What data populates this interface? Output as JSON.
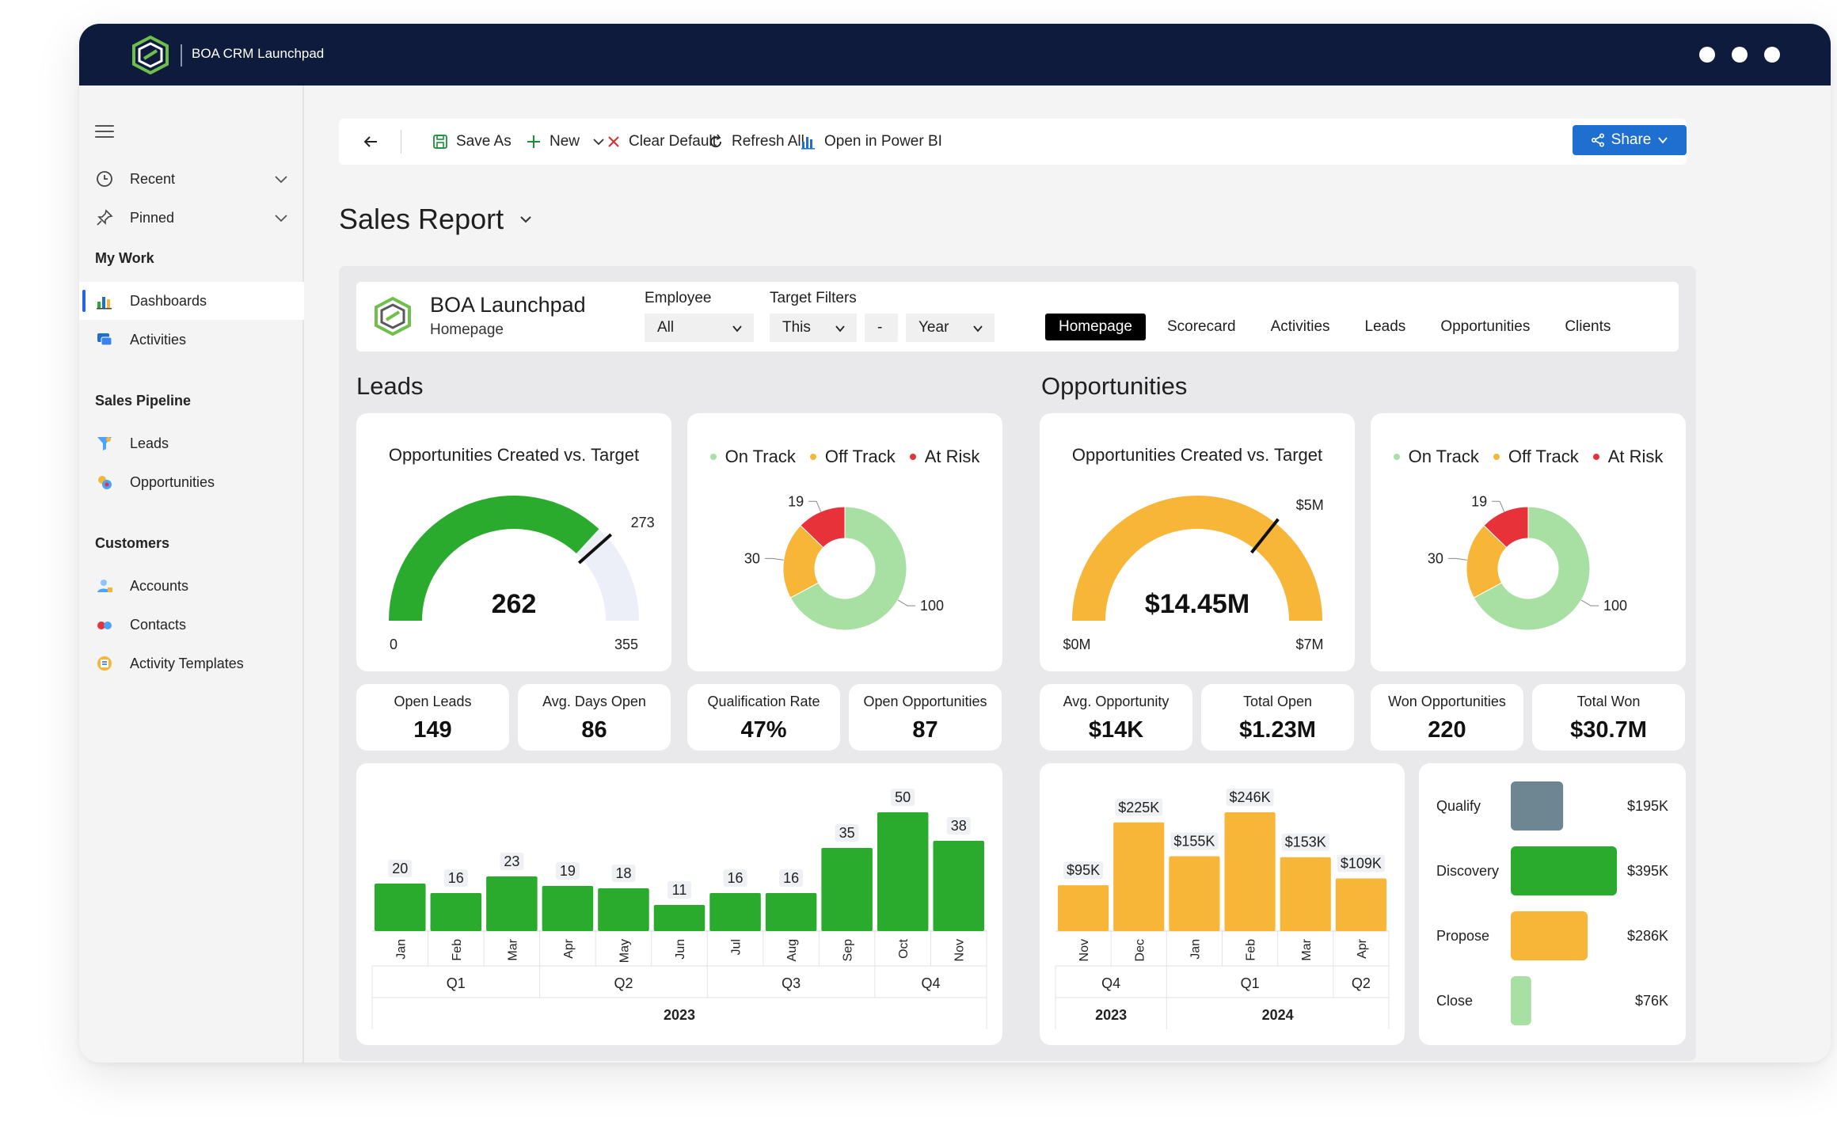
{
  "app": {
    "title": "BOA CRM Launchpad"
  },
  "sidebar": {
    "recent": "Recent",
    "pinned": "Pinned",
    "my_work": "My Work",
    "dashboards": "Dashboards",
    "activities": "Activities",
    "sales_pipeline": "Sales Pipeline",
    "leads": "Leads",
    "opportunities": "Opportunities",
    "customers": "Customers",
    "accounts": "Accounts",
    "contacts": "Contacts",
    "activity_templates": "Activity Templates"
  },
  "toolbar": {
    "save_as": "Save As",
    "new": "New",
    "clear_default": "Clear Default",
    "refresh_all": "Refresh All",
    "open_power_bi": "Open in Power BI",
    "share": "Share"
  },
  "page": {
    "title": "Sales Report"
  },
  "report": {
    "brand": "BOA Launchpad",
    "subtitle": "Homepage",
    "employee_label": "Employee",
    "employee_value": "All",
    "target_label": "Target Filters",
    "target_period": "This",
    "target_sep": "-",
    "target_unit": "Year",
    "tabs": [
      "Homepage",
      "Scorecard",
      "Activities",
      "Leads",
      "Opportunities",
      "Clients"
    ]
  },
  "leads": {
    "section_title": "Leads",
    "gauge": {
      "title": "Opportunities Created vs. Target",
      "value": 262,
      "value_label": "262",
      "target": 273,
      "target_label": "273",
      "min": 0,
      "min_label": "0",
      "max": 355,
      "max_label": "355"
    },
    "donut": {
      "legend": [
        "On Track",
        "Off Track",
        "At Risk"
      ],
      "values": [
        100,
        30,
        19
      ],
      "labels": [
        "100",
        "30",
        "19"
      ],
      "colors": [
        "#a8e0a4",
        "#f7b638",
        "#e8323a"
      ]
    },
    "kpis": [
      {
        "label": "Open Leads",
        "value": "149"
      },
      {
        "label": "Avg. Days Open",
        "value": "86"
      },
      {
        "label": "Qualification Rate",
        "value": "47%"
      },
      {
        "label": "Open Opportunities",
        "value": "87"
      }
    ]
  },
  "opportunities": {
    "section_title": "Opportunities",
    "gauge": {
      "title": "Opportunities Created vs. Target",
      "value": 14.45,
      "value_label": "$14.45M",
      "target": 5,
      "target_label": "$5M",
      "min": 0,
      "min_label": "$0M",
      "max": 7,
      "max_label": "$7M"
    },
    "donut": {
      "legend": [
        "On Track",
        "Off Track",
        "At Risk"
      ],
      "values": [
        100,
        30,
        19
      ],
      "labels": [
        "100",
        "30",
        "19"
      ],
      "colors": [
        "#a8e0a4",
        "#f7b638",
        "#e8323a"
      ]
    },
    "kpis": [
      {
        "label": "Avg. Opportunity",
        "value": "$14K"
      },
      {
        "label": "Total Open",
        "value": "$1.23M"
      },
      {
        "label": "Won Opportunities",
        "value": "220"
      },
      {
        "label": "Total Won",
        "value": "$30.7M"
      }
    ]
  },
  "colors": {
    "green": "#2aab2e",
    "orange": "#f7b638",
    "red": "#e8323a",
    "light_green": "#a8e0a4",
    "slate": "#6e8592",
    "navy": "#0f1b3d",
    "blue": "#1f6fd1"
  },
  "chart_data": [
    {
      "type": "bar",
      "categories": [
        "Jan",
        "Feb",
        "Mar",
        "Apr",
        "May",
        "Jun",
        "Jul",
        "Aug",
        "Sep",
        "Oct",
        "Nov"
      ],
      "values": [
        20,
        16,
        23,
        19,
        18,
        11,
        16,
        16,
        35,
        50,
        38
      ],
      "labels": [
        "20",
        "16",
        "23",
        "19",
        "18",
        "11",
        "16",
        "16",
        "35",
        "50",
        "38"
      ],
      "quarters": [
        {
          "name": "Q1",
          "count": 3
        },
        {
          "name": "Q2",
          "count": 3
        },
        {
          "name": "Q3",
          "count": 3
        },
        {
          "name": "Q4",
          "count": 2
        }
      ],
      "years": [
        {
          "name": "2023",
          "count": 11
        }
      ],
      "color": "#2aab2e"
    },
    {
      "type": "bar",
      "categories": [
        "Nov",
        "Dec",
        "Jan",
        "Feb",
        "Mar",
        "Apr"
      ],
      "values": [
        95,
        225,
        155,
        246,
        153,
        109
      ],
      "labels": [
        "$95K",
        "$225K",
        "$155K",
        "$246K",
        "$153K",
        "$109K"
      ],
      "quarters": [
        {
          "name": "Q4",
          "count": 2
        },
        {
          "name": "Q1",
          "count": 3
        },
        {
          "name": "Q2",
          "count": 1
        }
      ],
      "years": [
        {
          "name": "2023",
          "count": 2
        },
        {
          "name": "2024",
          "count": 4
        }
      ],
      "color": "#f7b638"
    },
    {
      "type": "bar",
      "orientation": "horizontal",
      "categories": [
        "Qualify",
        "Discovery",
        "Propose",
        "Close"
      ],
      "values": [
        195,
        395,
        286,
        76
      ],
      "labels": [
        "$195K",
        "$395K",
        "$286K",
        "$76K"
      ],
      "colors": [
        "#6e8592",
        "#2aab2e",
        "#f7b638",
        "#a8e0a4"
      ]
    }
  ]
}
